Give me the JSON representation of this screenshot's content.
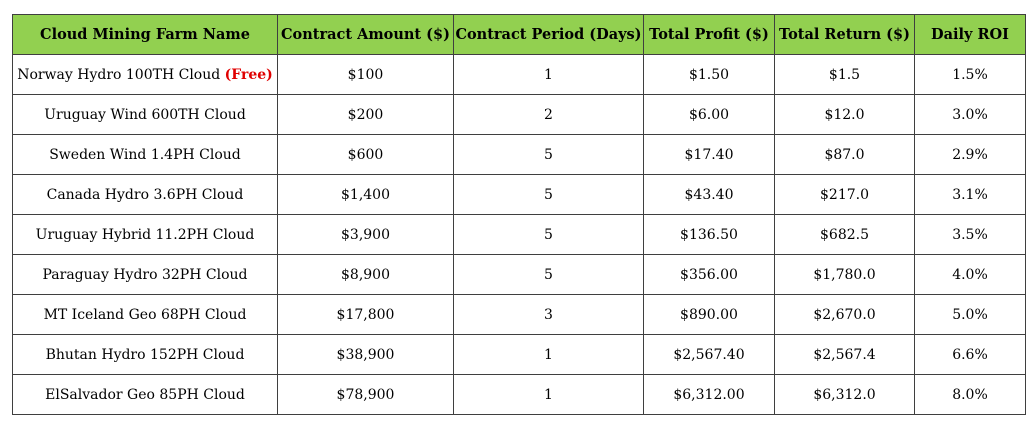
{
  "columns": [
    "Cloud Mining Farm Name",
    "Contract Amount ($)",
    "Contract Period (Days)",
    "Total Profit ($)",
    "Total Return ($)",
    "Daily ROI"
  ],
  "rows": [
    {
      "name": "Norway Hydro 100TH Cloud",
      "tag": "(Free)",
      "amount": "$100",
      "period": "1",
      "profit": "$1.50",
      "return": "$1.5",
      "roi": "1.5%"
    },
    {
      "name": "Uruguay Wind 600TH Cloud",
      "tag": "",
      "amount": "$200",
      "period": "2",
      "profit": "$6.00",
      "return": "$12.0",
      "roi": "3.0%"
    },
    {
      "name": "Sweden Wind 1.4PH Cloud",
      "tag": "",
      "amount": "$600",
      "period": "5",
      "profit": "$17.40",
      "return": "$87.0",
      "roi": "2.9%"
    },
    {
      "name": "Canada Hydro 3.6PH Cloud",
      "tag": "",
      "amount": "$1,400",
      "period": "5",
      "profit": "$43.40",
      "return": "$217.0",
      "roi": "3.1%"
    },
    {
      "name": "Uruguay Hybrid 11.2PH Cloud",
      "tag": "",
      "amount": "$3,900",
      "period": "5",
      "profit": "$136.50",
      "return": "$682.5",
      "roi": "3.5%"
    },
    {
      "name": "Paraguay Hydro 32PH Cloud",
      "tag": "",
      "amount": "$8,900",
      "period": "5",
      "profit": "$356.00",
      "return": "$1,780.0",
      "roi": "4.0%"
    },
    {
      "name": "MT Iceland Geo 68PH Cloud",
      "tag": "",
      "amount": "$17,800",
      "period": "3",
      "profit": "$890.00",
      "return": "$2,670.0",
      "roi": "5.0%"
    },
    {
      "name": "Bhutan Hydro 152PH Cloud",
      "tag": "",
      "amount": "$38,900",
      "period": "1",
      "profit": "$2,567.40",
      "return": "$2,567.4",
      "roi": "6.6%"
    },
    {
      "name": "ElSalvador Geo 85PH Cloud",
      "tag": "",
      "amount": "$78,900",
      "period": "1",
      "profit": "$6,312.00",
      "return": "$6,312.0",
      "roi": "8.0%"
    }
  ],
  "colors": {
    "header_bg": "#92d050",
    "free_tag": "#e00000",
    "border": "#3f3f3f"
  }
}
